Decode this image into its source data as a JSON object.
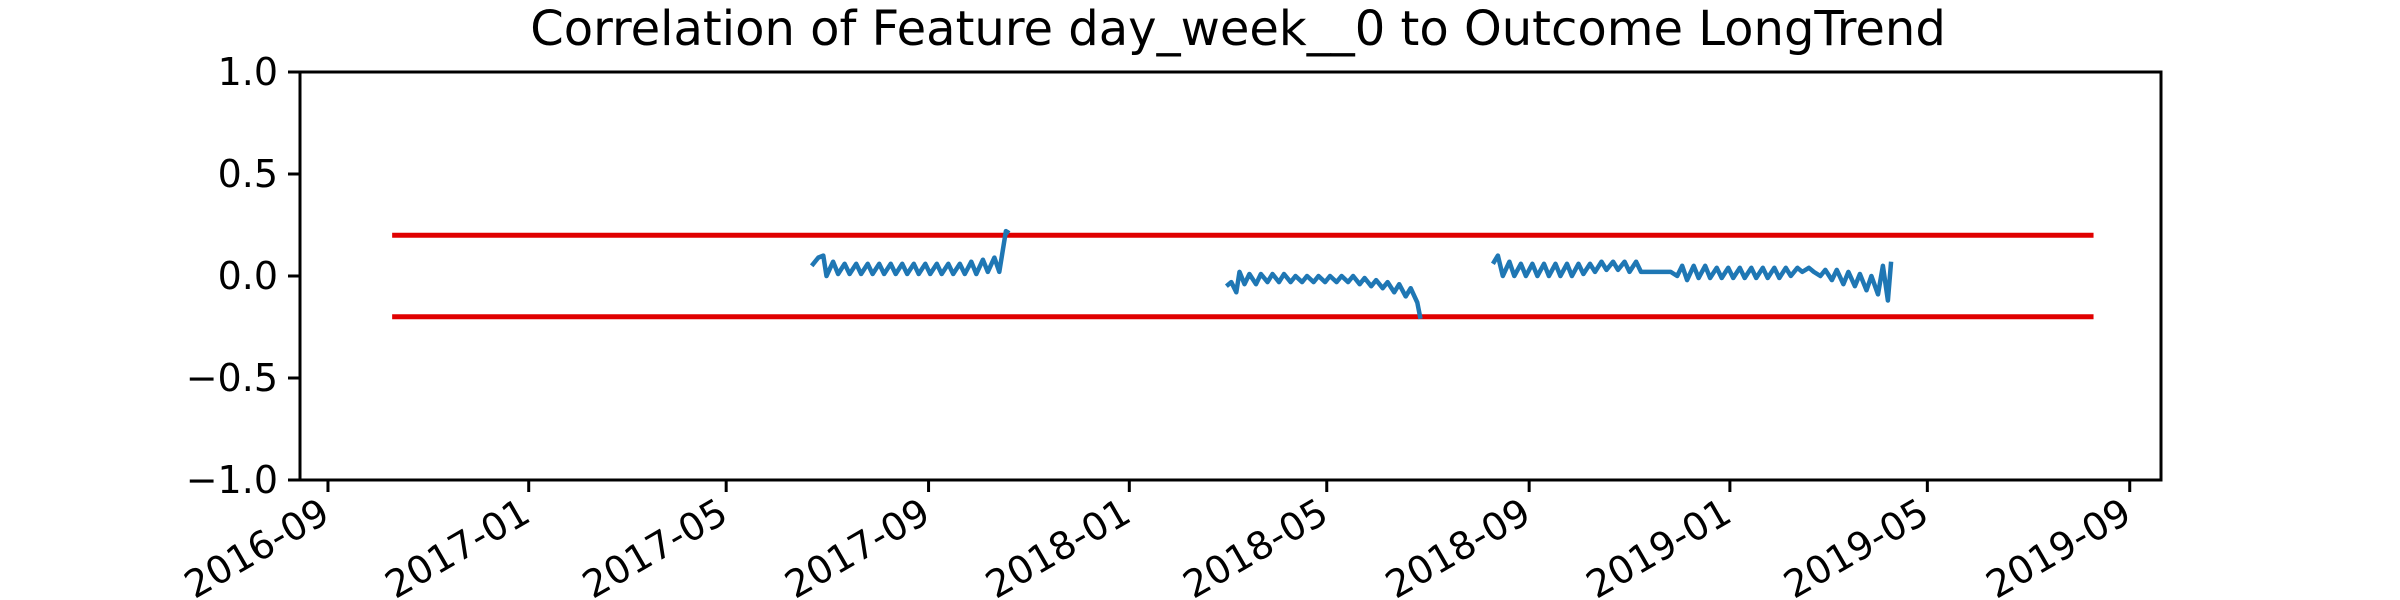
{
  "chart_data": {
    "type": "line",
    "title": "Correlation of Feature day_week__0 to Outcome LongTrend",
    "xlabel": "",
    "ylabel": "",
    "x_axis_type": "date",
    "xlim": [
      "2016-08-15",
      "2019-09-20"
    ],
    "ylim": [
      -1.0,
      1.0
    ],
    "x_ticks": [
      "2016-09",
      "2017-01",
      "2017-05",
      "2017-09",
      "2018-01",
      "2018-05",
      "2018-09",
      "2019-01",
      "2019-05",
      "2019-09"
    ],
    "y_ticks": [
      {
        "value": 1.0,
        "label": "1.0"
      },
      {
        "value": 0.5,
        "label": "0.5"
      },
      {
        "value": 0.0,
        "label": "0.0"
      },
      {
        "value": -0.5,
        "label": "−0.5"
      },
      {
        "value": -1.0,
        "label": "−1.0"
      }
    ],
    "grid": false,
    "legend": "none",
    "colors": {
      "series": "#1f77b4",
      "threshold": "#e00000",
      "axes": "#000000"
    },
    "threshold_lines": [
      {
        "y": 0.2,
        "x_start": "2016-10-10",
        "x_end": "2019-08-10"
      },
      {
        "y": -0.2,
        "x_start": "2016-10-10",
        "x_end": "2019-08-10"
      }
    ],
    "series": [
      {
        "segments": [
          [
            [
              "2017-06-22",
              0.05
            ],
            [
              "2017-06-26",
              0.09
            ],
            [
              "2017-06-29",
              0.1
            ],
            [
              "2017-07-01",
              0.0
            ],
            [
              "2017-07-05",
              0.07
            ],
            [
              "2017-07-08",
              0.01
            ],
            [
              "2017-07-12",
              0.06
            ],
            [
              "2017-07-15",
              0.01
            ],
            [
              "2017-07-19",
              0.06
            ],
            [
              "2017-07-22",
              0.01
            ],
            [
              "2017-07-26",
              0.06
            ],
            [
              "2017-07-29",
              0.01
            ],
            [
              "2017-08-02",
              0.06
            ],
            [
              "2017-08-05",
              0.01
            ],
            [
              "2017-08-09",
              0.06
            ],
            [
              "2017-08-12",
              0.01
            ],
            [
              "2017-08-16",
              0.06
            ],
            [
              "2017-08-19",
              0.01
            ],
            [
              "2017-08-23",
              0.06
            ],
            [
              "2017-08-26",
              0.01
            ],
            [
              "2017-08-30",
              0.06
            ],
            [
              "2017-09-02",
              0.01
            ],
            [
              "2017-09-06",
              0.06
            ],
            [
              "2017-09-09",
              0.01
            ],
            [
              "2017-09-13",
              0.06
            ],
            [
              "2017-09-16",
              0.01
            ],
            [
              "2017-09-20",
              0.06
            ],
            [
              "2017-09-23",
              0.01
            ],
            [
              "2017-09-27",
              0.07
            ],
            [
              "2017-09-30",
              0.01
            ],
            [
              "2017-10-04",
              0.08
            ],
            [
              "2017-10-07",
              0.02
            ],
            [
              "2017-10-11",
              0.09
            ],
            [
              "2017-10-14",
              0.02
            ],
            [
              "2017-10-18",
              0.22
            ],
            [
              "2017-10-20",
              0.21
            ]
          ],
          [
            [
              "2018-03-01",
              -0.05
            ],
            [
              "2018-03-04",
              -0.03
            ],
            [
              "2018-03-07",
              -0.08
            ],
            [
              "2018-03-09",
              0.02
            ],
            [
              "2018-03-12",
              -0.04
            ],
            [
              "2018-03-15",
              0.01
            ],
            [
              "2018-03-19",
              -0.04
            ],
            [
              "2018-03-22",
              0.01
            ],
            [
              "2018-03-26",
              -0.03
            ],
            [
              "2018-03-29",
              0.01
            ],
            [
              "2018-04-02",
              -0.03
            ],
            [
              "2018-04-05",
              0.01
            ],
            [
              "2018-04-09",
              -0.03
            ],
            [
              "2018-04-12",
              0.0
            ],
            [
              "2018-04-16",
              -0.03
            ],
            [
              "2018-04-19",
              0.0
            ],
            [
              "2018-04-23",
              -0.03
            ],
            [
              "2018-04-26",
              0.0
            ],
            [
              "2018-04-30",
              -0.03
            ],
            [
              "2018-05-03",
              0.0
            ],
            [
              "2018-05-07",
              -0.03
            ],
            [
              "2018-05-10",
              0.0
            ],
            [
              "2018-05-14",
              -0.03
            ],
            [
              "2018-05-17",
              0.0
            ],
            [
              "2018-05-21",
              -0.04
            ],
            [
              "2018-05-24",
              -0.01
            ],
            [
              "2018-05-28",
              -0.05
            ],
            [
              "2018-05-31",
              -0.02
            ],
            [
              "2018-06-04",
              -0.06
            ],
            [
              "2018-06-07",
              -0.03
            ],
            [
              "2018-06-11",
              -0.08
            ],
            [
              "2018-06-14",
              -0.04
            ],
            [
              "2018-06-18",
              -0.1
            ],
            [
              "2018-06-21",
              -0.06
            ],
            [
              "2018-06-25",
              -0.13
            ],
            [
              "2018-06-27",
              -0.21
            ]
          ],
          [
            [
              "2018-08-10",
              0.06
            ],
            [
              "2018-08-13",
              0.1
            ],
            [
              "2018-08-16",
              0.0
            ],
            [
              "2018-08-20",
              0.07
            ],
            [
              "2018-08-23",
              0.0
            ],
            [
              "2018-08-27",
              0.06
            ],
            [
              "2018-08-30",
              0.0
            ],
            [
              "2018-09-03",
              0.06
            ],
            [
              "2018-09-06",
              0.0
            ],
            [
              "2018-09-10",
              0.06
            ],
            [
              "2018-09-13",
              0.0
            ],
            [
              "2018-09-17",
              0.06
            ],
            [
              "2018-09-20",
              0.0
            ],
            [
              "2018-09-24",
              0.06
            ],
            [
              "2018-09-27",
              0.0
            ],
            [
              "2018-10-01",
              0.06
            ],
            [
              "2018-10-04",
              0.01
            ],
            [
              "2018-10-08",
              0.06
            ],
            [
              "2018-10-11",
              0.02
            ],
            [
              "2018-10-15",
              0.07
            ],
            [
              "2018-10-18",
              0.03
            ],
            [
              "2018-10-22",
              0.07
            ],
            [
              "2018-10-25",
              0.03
            ],
            [
              "2018-10-29",
              0.07
            ],
            [
              "2018-11-01",
              0.02
            ],
            [
              "2018-11-05",
              0.07
            ],
            [
              "2018-11-08",
              0.02
            ],
            [
              "2018-11-12",
              0.02
            ],
            [
              "2018-11-26",
              0.02
            ],
            [
              "2018-11-30",
              0.0
            ],
            [
              "2018-12-03",
              0.05
            ],
            [
              "2018-12-06",
              -0.02
            ],
            [
              "2018-12-10",
              0.05
            ],
            [
              "2018-12-13",
              -0.01
            ],
            [
              "2018-12-17",
              0.05
            ],
            [
              "2018-12-20",
              -0.01
            ],
            [
              "2018-12-24",
              0.04
            ],
            [
              "2018-12-27",
              -0.01
            ],
            [
              "2018-12-31",
              0.04
            ],
            [
              "2019-01-03",
              -0.01
            ],
            [
              "2019-01-07",
              0.04
            ],
            [
              "2019-01-10",
              -0.01
            ],
            [
              "2019-01-14",
              0.04
            ],
            [
              "2019-01-17",
              -0.01
            ],
            [
              "2019-01-21",
              0.04
            ],
            [
              "2019-01-24",
              -0.01
            ],
            [
              "2019-01-28",
              0.04
            ],
            [
              "2019-01-31",
              -0.01
            ],
            [
              "2019-02-04",
              0.04
            ],
            [
              "2019-02-07",
              0.0
            ],
            [
              "2019-02-11",
              0.04
            ],
            [
              "2019-02-14",
              0.02
            ],
            [
              "2019-02-18",
              0.04
            ],
            [
              "2019-02-21",
              0.02
            ],
            [
              "2019-02-25",
              0.0
            ],
            [
              "2019-02-28",
              0.03
            ],
            [
              "2019-03-04",
              -0.02
            ],
            [
              "2019-03-07",
              0.03
            ],
            [
              "2019-03-11",
              -0.04
            ],
            [
              "2019-03-14",
              0.02
            ],
            [
              "2019-03-18",
              -0.05
            ],
            [
              "2019-03-21",
              0.01
            ],
            [
              "2019-03-25",
              -0.07
            ],
            [
              "2019-03-28",
              0.0
            ],
            [
              "2019-04-01",
              -0.09
            ],
            [
              "2019-04-04",
              0.05
            ],
            [
              "2019-04-07",
              -0.12
            ],
            [
              "2019-04-09",
              0.07
            ]
          ]
        ]
      }
    ]
  }
}
